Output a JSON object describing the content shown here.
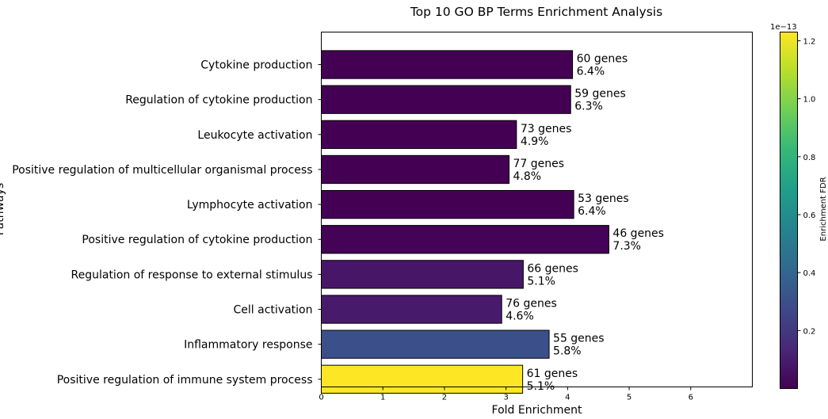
{
  "chart_data": {
    "type": "bar",
    "orientation": "horizontal",
    "title": "Top 10 GO BP Terms Enrichment Analysis",
    "xlabel": "Fold Enrichment",
    "ylabel": "Pathways",
    "xlim": [
      0,
      7
    ],
    "xticks": [
      "0",
      "1",
      "2",
      "3",
      "4",
      "5",
      "6"
    ],
    "grid": false,
    "categories": [
      "Cytokine production",
      "Regulation of cytokine production",
      "Leukocyte activation",
      "Positive regulation of multicellular organismal process",
      "Lymphocyte activation",
      "Positive regulation of cytokine production",
      "Regulation of response to external stimulus",
      "Cell activation",
      "Inflammatory response",
      "Positive regulation of immune system process"
    ],
    "values": [
      4.08,
      4.05,
      3.17,
      3.05,
      4.1,
      4.67,
      3.28,
      2.93,
      3.7,
      3.27
    ],
    "gene_labels": [
      "60 genes",
      "59 genes",
      "73 genes",
      "77 genes",
      "53 genes",
      "46 genes",
      "66 genes",
      "76 genes",
      "55 genes",
      "61 genes"
    ],
    "pct_labels": [
      "6.4%",
      "6.3%",
      "4.9%",
      "4.8%",
      "6.4%",
      "7.3%",
      "5.1%",
      "4.6%",
      "5.8%",
      "5.1%"
    ],
    "colors": [
      "#440154",
      "#440154",
      "#440154",
      "#440154",
      "#440154",
      "#440356",
      "#471668",
      "#481a6c",
      "#3b4f8a",
      "#fde725"
    ],
    "colorbar": {
      "label": "Enrichment FDR",
      "multiplier": "1e−13",
      "range": [
        0,
        1.23
      ],
      "ticks": [
        {
          "value": 0.2,
          "label": "0.2"
        },
        {
          "value": 0.4,
          "label": "0.4"
        },
        {
          "value": 0.6,
          "label": "0.6"
        },
        {
          "value": 0.8,
          "label": "0.8"
        },
        {
          "value": 1.0,
          "label": "1.0"
        },
        {
          "value": 1.2,
          "label": "1.2"
        }
      ],
      "colormap": [
        "#440154",
        "#482878",
        "#3e4989",
        "#31688e",
        "#26828e",
        "#1f9e89",
        "#35b779",
        "#6ece58",
        "#b5de2b",
        "#fde725"
      ]
    }
  }
}
